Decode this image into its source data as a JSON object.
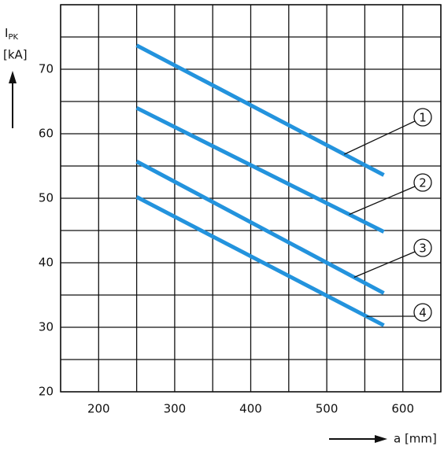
{
  "chart_data": {
    "type": "line",
    "y_label": "I",
    "y_label_sub": "PK",
    "y_unit": "[kA]",
    "x_label": "a [mm]",
    "series": [
      {
        "name": "1",
        "color": "#2393dd",
        "x": [
          250,
          575
        ],
        "values": [
          73.7,
          53.6
        ]
      },
      {
        "name": "2",
        "color": "#2393dd",
        "x": [
          250,
          575
        ],
        "values": [
          64.0,
          44.8
        ]
      },
      {
        "name": "3",
        "color": "#2393dd",
        "x": [
          250,
          575
        ],
        "values": [
          55.7,
          35.3
        ]
      },
      {
        "name": "4",
        "color": "#2393dd",
        "x": [
          250,
          575
        ],
        "values": [
          50.2,
          30.3
        ]
      }
    ],
    "xlim": [
      150,
      650
    ],
    "xticks": [
      200,
      300,
      400,
      500,
      600
    ],
    "xgrid": [
      150,
      200,
      250,
      300,
      350,
      400,
      450,
      500,
      550,
      600,
      650
    ],
    "ylim": [
      20,
      80
    ],
    "yticks": [
      20,
      30,
      40,
      50,
      60,
      70
    ],
    "ygrid": [
      20,
      25,
      30,
      35,
      40,
      45,
      50,
      55,
      60,
      65,
      70,
      75,
      80
    ],
    "grid": true
  }
}
